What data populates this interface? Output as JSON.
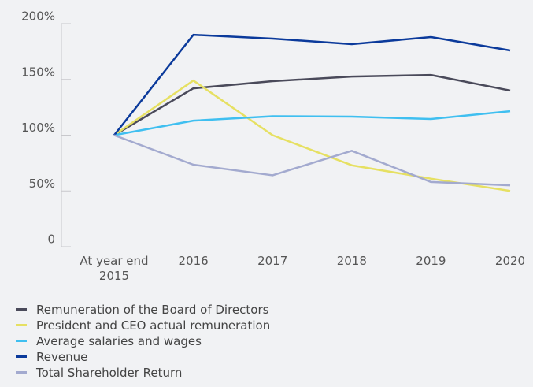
{
  "chart_data": {
    "type": "line",
    "categories": [
      "At year end 2015",
      "2016",
      "2017",
      "2018",
      "2019",
      "2020"
    ],
    "series": [
      {
        "name": "Remuneration of the Board of Directors",
        "color": "#4a4a5a",
        "values": [
          100,
          142,
          148.4,
          152.6,
          154,
          140
        ]
      },
      {
        "name": "President and CEO actual remuneration",
        "color": "#e6e062",
        "values": [
          100,
          149,
          100,
          73,
          61,
          50
        ]
      },
      {
        "name": "Average salaries and wages",
        "color": "#3fbff0",
        "values": [
          100,
          113,
          117,
          116.6,
          114.5,
          121.5
        ]
      },
      {
        "name": "Revenue",
        "color": "#0b3a9b",
        "values": [
          100,
          190,
          186.6,
          181.6,
          188,
          176
        ]
      },
      {
        "name": "Total Shareholder Return",
        "color": "#a3aacf",
        "values": [
          100,
          73.5,
          64,
          86,
          58,
          55
        ]
      }
    ],
    "ylim": [
      0,
      200
    ],
    "yticks": [
      0,
      {
        "value": 50,
        "label": "50%"
      },
      {
        "value": 100,
        "label": "100%"
      },
      {
        "value": 150,
        "label": "150%"
      },
      {
        "value": 200,
        "label": "200%"
      }
    ]
  }
}
